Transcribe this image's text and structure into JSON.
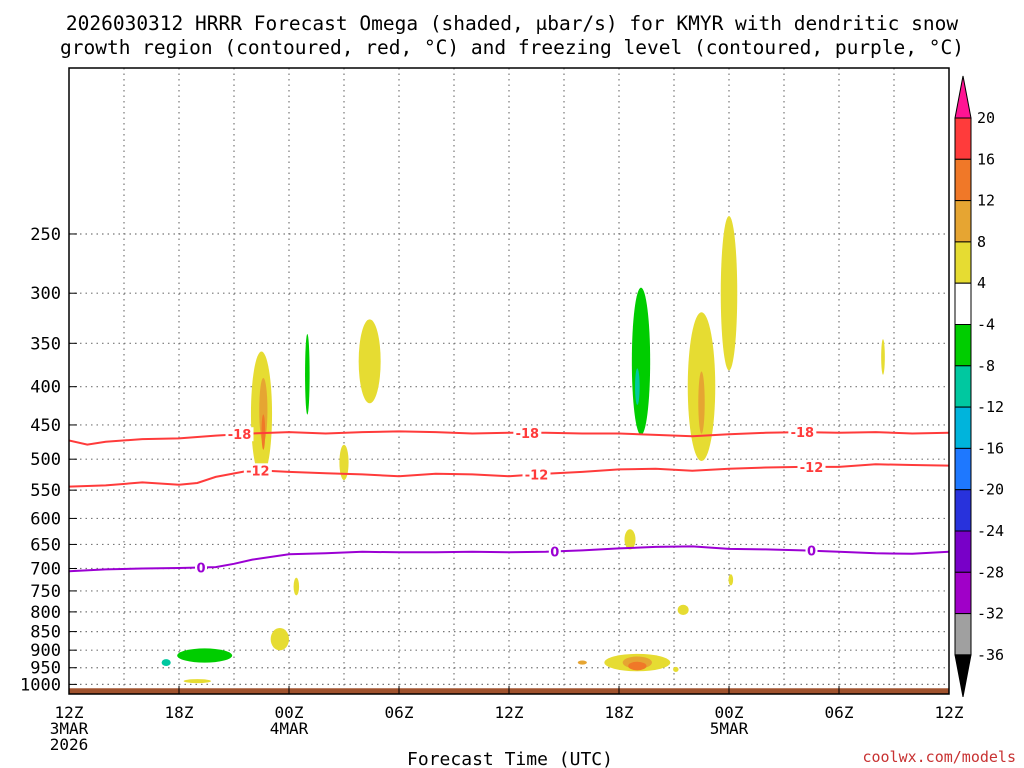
{
  "chart_data": {
    "type": "contour",
    "title_lines": [
      "2026030312 HRRR Forecast Omega (shaded, μbar/s) for KMYR with dendritic snow",
      "growth region (contoured, red, °C) and freezing level (contoured, purple, °C)"
    ],
    "xlabel": "Forecast Time (UTC)",
    "credit": "coolwx.com/models",
    "x_range_hours": [
      0,
      48
    ],
    "y_range_hpa": [
      1030,
      150
    ],
    "x_ticks": [
      {
        "hour": 0,
        "lines": [
          "12Z",
          "3MAR",
          "2026"
        ]
      },
      {
        "hour": 6,
        "lines": [
          "18Z"
        ]
      },
      {
        "hour": 12,
        "lines": [
          "00Z",
          "4MAR"
        ]
      },
      {
        "hour": 18,
        "lines": [
          "06Z"
        ]
      },
      {
        "hour": 24,
        "lines": [
          "12Z"
        ]
      },
      {
        "hour": 30,
        "lines": [
          "18Z"
        ]
      },
      {
        "hour": 36,
        "lines": [
          "00Z",
          "5MAR"
        ]
      },
      {
        "hour": 42,
        "lines": [
          "06Z"
        ]
      },
      {
        "hour": 48,
        "lines": [
          "12Z"
        ]
      }
    ],
    "y_ticks": [
      250,
      300,
      350,
      400,
      450,
      500,
      550,
      600,
      650,
      700,
      750,
      800,
      850,
      900,
      950,
      1000
    ],
    "colorbar": {
      "ticks": [
        "20",
        "16",
        "12",
        "8",
        "4",
        "-4",
        "-8",
        "-12",
        "-16",
        "-20",
        "-24",
        "-28",
        "-32",
        "-36"
      ],
      "colors": [
        "#ff1493",
        "#ff3b3b",
        "#f07828",
        "#e6a532",
        "#e6dc32",
        "#ffffff",
        "#00cd00",
        "#00c8a0",
        "#00b4dc",
        "#1e78ff",
        "#2832dc",
        "#7800c8",
        "#a000c8",
        "#a0a0a0",
        "#000000"
      ]
    },
    "shading": [
      {
        "name": "omega-pos-4",
        "color": "#e6dc32",
        "t": 10.5,
        "p": 435,
        "dt": 1.15,
        "dp": 165
      },
      {
        "name": "omega-pos-8",
        "color": "#e6a532",
        "t": 10.6,
        "p": 430,
        "dt": 0.45,
        "dp": 85
      },
      {
        "name": "omega-pos-12",
        "color": "#f07828",
        "t": 10.6,
        "p": 460,
        "dt": 0.2,
        "dp": 50
      },
      {
        "name": "omega-neg-8",
        "color": "#00cd00",
        "t": 13.0,
        "p": 385,
        "dt": 0.25,
        "dp": 95
      },
      {
        "name": "omega-pos-4",
        "color": "#e6dc32",
        "t": 16.4,
        "p": 370,
        "dt": 1.2,
        "dp": 95
      },
      {
        "name": "omega-pos-4",
        "color": "#e6dc32",
        "t": 15.0,
        "p": 505,
        "dt": 0.5,
        "dp": 55
      },
      {
        "name": "omega-pos-4",
        "color": "#e6dc32",
        "t": 12.4,
        "p": 740,
        "dt": 0.3,
        "dp": 40
      },
      {
        "name": "omega-pos-4",
        "color": "#e6dc32",
        "t": 11.5,
        "p": 870,
        "dt": 1.0,
        "dp": 60
      },
      {
        "name": "omega-neg-8",
        "color": "#00cd00",
        "t": 7.4,
        "p": 915,
        "dt": 3.0,
        "dp": 40
      },
      {
        "name": "omega-neg-12",
        "color": "#00c8a0",
        "t": 5.3,
        "p": 935,
        "dt": 0.5,
        "dp": 20
      },
      {
        "name": "omega-pos-4",
        "color": "#e6dc32",
        "t": 7.0,
        "p": 990,
        "dt": 1.5,
        "dp": 12
      },
      {
        "name": "omega-neg-8",
        "color": "#00cd00",
        "t": 31.2,
        "p": 370,
        "dt": 1.0,
        "dp": 165
      },
      {
        "name": "omega-neg-12",
        "color": "#00c8a0",
        "t": 31.0,
        "p": 400,
        "dt": 0.25,
        "dp": 45
      },
      {
        "name": "omega-pos-4",
        "color": "#e6dc32",
        "t": 34.5,
        "p": 400,
        "dt": 1.5,
        "dp": 180
      },
      {
        "name": "omega-pos-4",
        "color": "#e6dc32",
        "t": 36.0,
        "p": 300,
        "dt": 0.9,
        "dp": 140
      },
      {
        "name": "omega-pos-8",
        "color": "#e6a532",
        "t": 34.5,
        "p": 420,
        "dt": 0.35,
        "dp": 80
      },
      {
        "name": "omega-pos-4",
        "color": "#e6dc32",
        "t": 44.4,
        "p": 365,
        "dt": 0.2,
        "dp": 40
      },
      {
        "name": "omega-pos-4",
        "color": "#e6dc32",
        "t": 30.6,
        "p": 640,
        "dt": 0.6,
        "dp": 40
      },
      {
        "name": "omega-pos-4",
        "color": "#e6dc32",
        "t": 33.5,
        "p": 795,
        "dt": 0.6,
        "dp": 25
      },
      {
        "name": "omega-pos-4",
        "color": "#e6dc32",
        "t": 36.1,
        "p": 725,
        "dt": 0.25,
        "dp": 25
      },
      {
        "name": "omega-pos-4",
        "color": "#e6dc32",
        "t": 31.0,
        "p": 935,
        "dt": 3.6,
        "dp": 50
      },
      {
        "name": "omega-pos-8",
        "color": "#e6a532",
        "t": 31.0,
        "p": 935,
        "dt": 1.6,
        "dp": 35
      },
      {
        "name": "omega-pos-12",
        "color": "#f07828",
        "t": 31.0,
        "p": 945,
        "dt": 1.0,
        "dp": 25
      },
      {
        "name": "omega-pos-8",
        "color": "#e6a532",
        "t": 28.0,
        "p": 935,
        "dt": 0.5,
        "dp": 12
      },
      {
        "name": "omega-pos-4",
        "color": "#e6dc32",
        "t": 33.1,
        "p": 955,
        "dt": 0.3,
        "dp": 15
      }
    ],
    "contours": [
      {
        "name": "dgz-18",
        "color": "#ff3b3b",
        "label": "-18",
        "x": [
          0,
          1,
          2,
          4,
          6,
          8,
          10,
          12,
          14,
          16,
          18,
          20,
          22,
          24,
          26,
          28,
          30,
          32,
          34,
          36,
          38,
          40,
          42,
          44,
          46,
          48
        ],
        "p": [
          472,
          478,
          474,
          470,
          469,
          465,
          462,
          460,
          462,
          460,
          459,
          460,
          462,
          461,
          461,
          462,
          462,
          464,
          466,
          463,
          461,
          460,
          461,
          460,
          462,
          461
        ],
        "label_hours": [
          9.3,
          25,
          40
        ]
      },
      {
        "name": "dgz-12",
        "color": "#ff3b3b",
        "label": "-12",
        "x": [
          0,
          2,
          4,
          6,
          7,
          8,
          10,
          12,
          14,
          16,
          18,
          20,
          22,
          24,
          26,
          28,
          30,
          32,
          34,
          36,
          38,
          40,
          42,
          44,
          46,
          48
        ],
        "p": [
          544,
          542,
          537,
          541,
          538,
          528,
          517,
          520,
          522,
          524,
          527,
          523,
          524,
          527,
          523,
          520,
          516,
          515,
          518,
          515,
          513,
          512,
          512,
          508,
          509,
          510
        ],
        "label_hours": [
          10.3,
          25.5,
          40.5
        ]
      },
      {
        "name": "freezing-level",
        "color": "#9b00d3",
        "label": "0",
        "x": [
          0,
          2,
          4,
          6,
          8,
          9,
          10,
          12,
          14,
          16,
          18,
          20,
          22,
          24,
          26,
          28,
          30,
          32,
          34,
          36,
          38,
          40,
          42,
          44,
          46,
          48
        ],
        "p": [
          706,
          702,
          700,
          699,
          697,
          690,
          681,
          670,
          668,
          665,
          666,
          666,
          665,
          666,
          665,
          662,
          658,
          655,
          654,
          659,
          660,
          662,
          665,
          668,
          669,
          665
        ],
        "label_hours": [
          7.2,
          26.5,
          40.5
        ]
      }
    ],
    "terrain": {
      "color": "#a0522d",
      "p_top": 1012
    }
  }
}
